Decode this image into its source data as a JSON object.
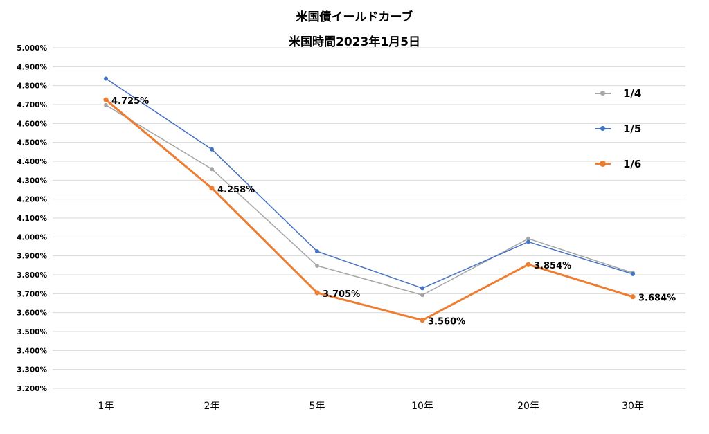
{
  "title": "米国債イールドカーブ",
  "subtitle": "米国時間2023年1月5日",
  "chart_data": {
    "type": "line",
    "categories": [
      "1年",
      "2年",
      "5年",
      "10年",
      "20年",
      "30年"
    ],
    "ylim": [
      3.2,
      5.0
    ],
    "ytick_step": 0.1,
    "ytick_labels": [
      "3.200%",
      "3.300%",
      "3.400%",
      "3.500%",
      "3.600%",
      "3.700%",
      "3.800%",
      "3.900%",
      "4.000%",
      "4.100%",
      "4.200%",
      "4.300%",
      "4.400%",
      "4.500%",
      "4.600%",
      "4.700%",
      "4.800%",
      "4.900%",
      "5.000%"
    ],
    "grid": true,
    "legend_position": "right",
    "series": [
      {
        "name": "1/4",
        "color": "#a5a5a5",
        "values": [
          4.697,
          4.359,
          3.848,
          3.693,
          3.991,
          3.81
        ]
      },
      {
        "name": "1/5",
        "color": "#4472c4",
        "values": [
          4.837,
          4.463,
          3.924,
          3.729,
          3.974,
          3.804
        ]
      },
      {
        "name": "1/6",
        "color": "#ed7d31",
        "values": [
          4.725,
          4.258,
          3.705,
          3.56,
          3.854,
          3.684
        ],
        "data_labels": [
          "4.725%",
          "4.258%",
          "3.705%",
          "3.560%",
          "3.854%",
          "3.684%"
        ]
      }
    ]
  }
}
